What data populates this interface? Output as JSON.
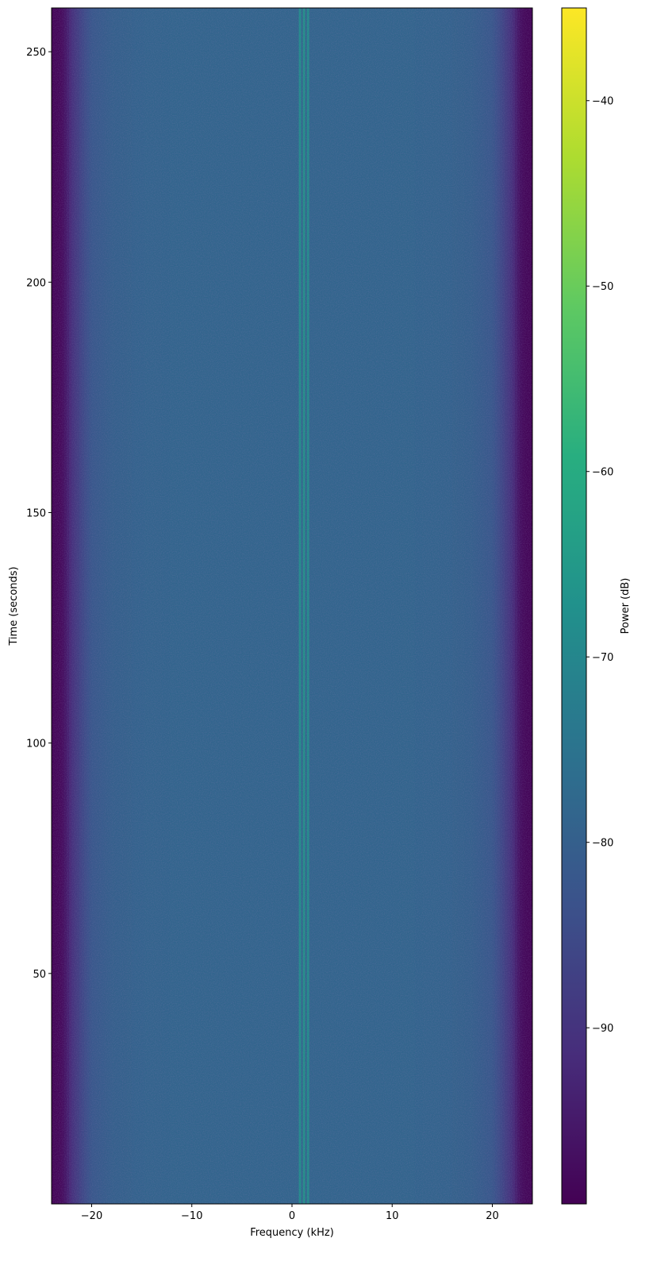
{
  "chart_data": {
    "type": "heatmap",
    "title": "",
    "xlabel": "Frequency (kHz)",
    "ylabel": "Time (seconds)",
    "xlim": [
      -24,
      24
    ],
    "ylim": [
      0,
      259.5
    ],
    "x_ticks": [
      -20,
      -10,
      0,
      10,
      20
    ],
    "x_tick_labels": [
      "−20",
      "−10",
      "0",
      "10",
      "20"
    ],
    "y_ticks": [
      50,
      100,
      150,
      200,
      250
    ],
    "y_tick_labels": [
      "50",
      "100",
      "150",
      "200",
      "250"
    ],
    "grid": false,
    "colormap": "viridis",
    "colorbar": {
      "label": "Power (dB)",
      "range": [
        -99.5,
        -35
      ],
      "ticks": [
        -90,
        -80,
        -70,
        -60,
        -50,
        -40
      ],
      "tick_labels": [
        "−90",
        "−80",
        "−70",
        "−60",
        "−50",
        "−40"
      ],
      "position": "right"
    },
    "power_profile_db": [
      [
        -24,
        -99
      ],
      [
        -23,
        -98
      ],
      [
        -22.5,
        -95
      ],
      [
        -22,
        -91
      ],
      [
        -21,
        -86
      ],
      [
        -20,
        -82
      ],
      [
        -18,
        -80
      ],
      [
        -15,
        -79
      ],
      [
        -10,
        -78.5
      ],
      [
        -5,
        -78.5
      ],
      [
        0,
        -78.5
      ],
      [
        5,
        -78.5
      ],
      [
        10,
        -78.5
      ],
      [
        15,
        -79
      ],
      [
        18,
        -80
      ],
      [
        20,
        -82
      ],
      [
        21,
        -86
      ],
      [
        22,
        -91
      ],
      [
        22.5,
        -95
      ],
      [
        23,
        -98
      ],
      [
        24,
        -99
      ]
    ],
    "carriers": [
      {
        "freq_khz": 0.8,
        "power_db": -67
      },
      {
        "freq_khz": 1.2,
        "power_db": -66
      },
      {
        "freq_khz": 1.6,
        "power_db": -67
      }
    ]
  }
}
